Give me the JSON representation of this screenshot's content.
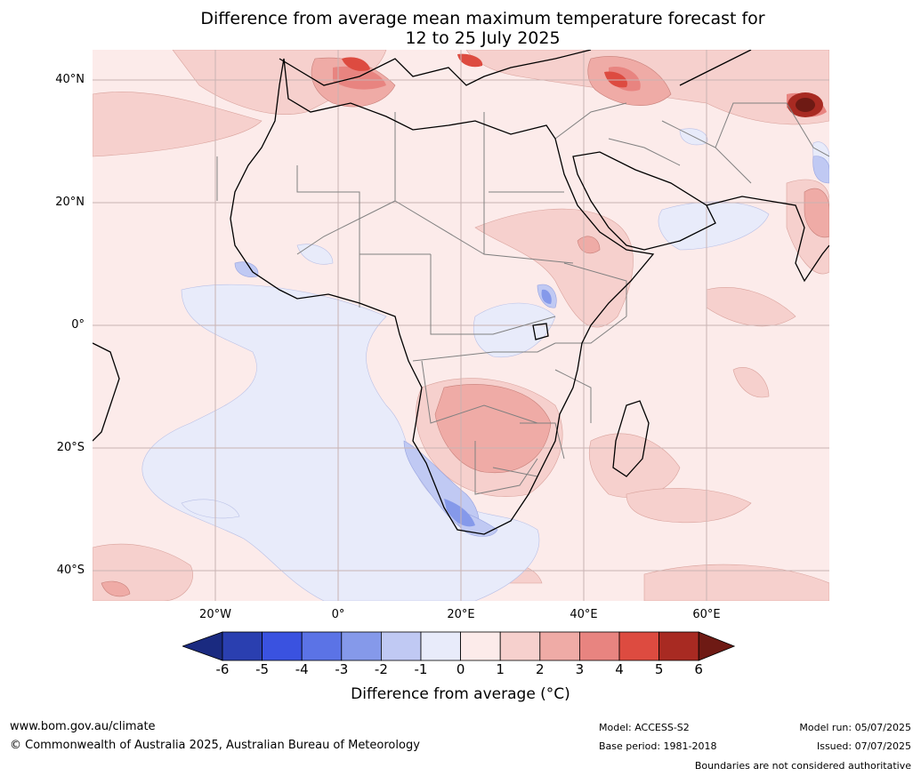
{
  "title": {
    "line1": "Difference from average mean maximum temperature forecast for",
    "line2": "12 to 25 July 2025"
  },
  "map": {
    "lat_labels": [
      "40°N",
      "20°N",
      "0°",
      "20°S",
      "40°S"
    ],
    "lon_labels": [
      "20°W",
      "0°",
      "20°E",
      "40°E",
      "60°E"
    ]
  },
  "colorbar": {
    "ticks": [
      "-6",
      "-5",
      "-4",
      "-3",
      "-2",
      "-1",
      "0",
      "1",
      "2",
      "3",
      "4",
      "5",
      "6"
    ],
    "colors": [
      "#1a2a80",
      "#2a3fb0",
      "#3a52e0",
      "#5b73e6",
      "#8599ea",
      "#c0c9f3",
      "#e8ebfa",
      "#fcebea",
      "#f6d0cd",
      "#efaba6",
      "#e88480",
      "#dd4b40",
      "#a82a22",
      "#6e1a14"
    ],
    "label": "Difference from average (°C)"
  },
  "footer": {
    "url": "www.bom.gov.au/climate",
    "copyright": "© Commonwealth of Australia 2025, Australian Bureau of Meteorology",
    "model": "Model: ACCESS-S2",
    "base_period": "Base period: 1981-2018",
    "model_run": "Model run: 05/07/2025",
    "issued": "Issued: 07/07/2025",
    "disclaimer": "Boundaries are not considered authoritative"
  }
}
